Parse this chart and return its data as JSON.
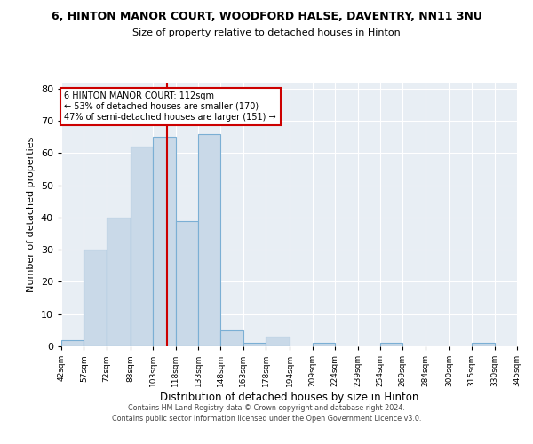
{
  "title": "6, HINTON MANOR COURT, WOODFORD HALSE, DAVENTRY, NN11 3NU",
  "subtitle": "Size of property relative to detached houses in Hinton",
  "xlabel": "Distribution of detached houses by size in Hinton",
  "ylabel": "Number of detached properties",
  "bin_edges": [
    42,
    57,
    72,
    88,
    103,
    118,
    133,
    148,
    163,
    178,
    194,
    209,
    224,
    239,
    254,
    269,
    284,
    300,
    315,
    330,
    345
  ],
  "bar_heights": [
    2,
    30,
    40,
    62,
    65,
    39,
    66,
    5,
    1,
    3,
    0,
    1,
    0,
    0,
    1,
    0,
    0,
    0,
    1,
    0
  ],
  "bar_color": "#c9d9e8",
  "bar_edge_color": "#7bafd4",
  "vline_x": 112,
  "vline_color": "#cc0000",
  "annotation_text": "6 HINTON MANOR COURT: 112sqm\n← 53% of detached houses are smaller (170)\n47% of semi-detached houses are larger (151) →",
  "annotation_box_color": "#ffffff",
  "annotation_box_edge": "#cc0000",
  "ylim": [
    0,
    82
  ],
  "yticks": [
    0,
    10,
    20,
    30,
    40,
    50,
    60,
    70,
    80
  ],
  "tick_labels": [
    "42sqm",
    "57sqm",
    "72sqm",
    "88sqm",
    "103sqm",
    "118sqm",
    "133sqm",
    "148sqm",
    "163sqm",
    "178sqm",
    "194sqm",
    "209sqm",
    "224sqm",
    "239sqm",
    "254sqm",
    "269sqm",
    "284sqm",
    "300sqm",
    "315sqm",
    "330sqm",
    "345sqm"
  ],
  "plot_bg_color": "#e8eef4",
  "footer_line1": "Contains HM Land Registry data © Crown copyright and database right 2024.",
  "footer_line2": "Contains public sector information licensed under the Open Government Licence v3.0."
}
